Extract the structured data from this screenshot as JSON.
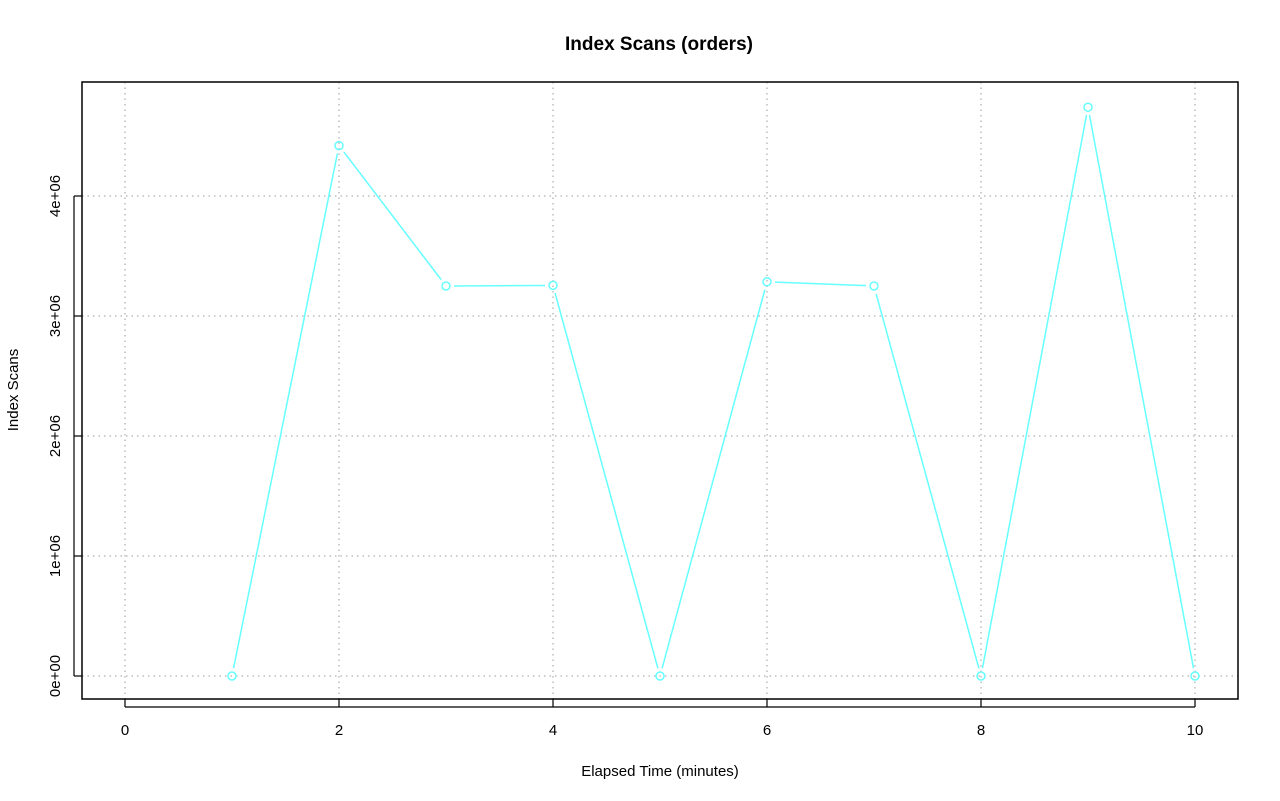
{
  "chart_data": {
    "type": "line",
    "title": "Index Scans (orders)",
    "xlabel": "Elapsed Time (minutes)",
    "ylabel": "Index Scans",
    "xlim": [
      0,
      10
    ],
    "ylim": [
      0,
      4750000
    ],
    "x_ticks": [
      0,
      2,
      4,
      6,
      8,
      10
    ],
    "x_tick_labels": [
      "0",
      "2",
      "4",
      "6",
      "8",
      "10"
    ],
    "y_ticks": [
      0,
      1000000,
      2000000,
      3000000,
      4000000
    ],
    "y_tick_labels": [
      "0e+00",
      "1e+06",
      "2e+06",
      "3e+06",
      "4e+06"
    ],
    "grid": true,
    "legend": "none",
    "series": [
      {
        "color": "#66FFFF",
        "marker": "open-circle",
        "x": [
          1,
          2,
          3,
          4,
          5,
          6,
          7,
          8,
          9,
          10
        ],
        "y": [
          0,
          4420000,
          3250000,
          3255000,
          0,
          3285000,
          3250000,
          0,
          4740000,
          0
        ]
      }
    ]
  }
}
